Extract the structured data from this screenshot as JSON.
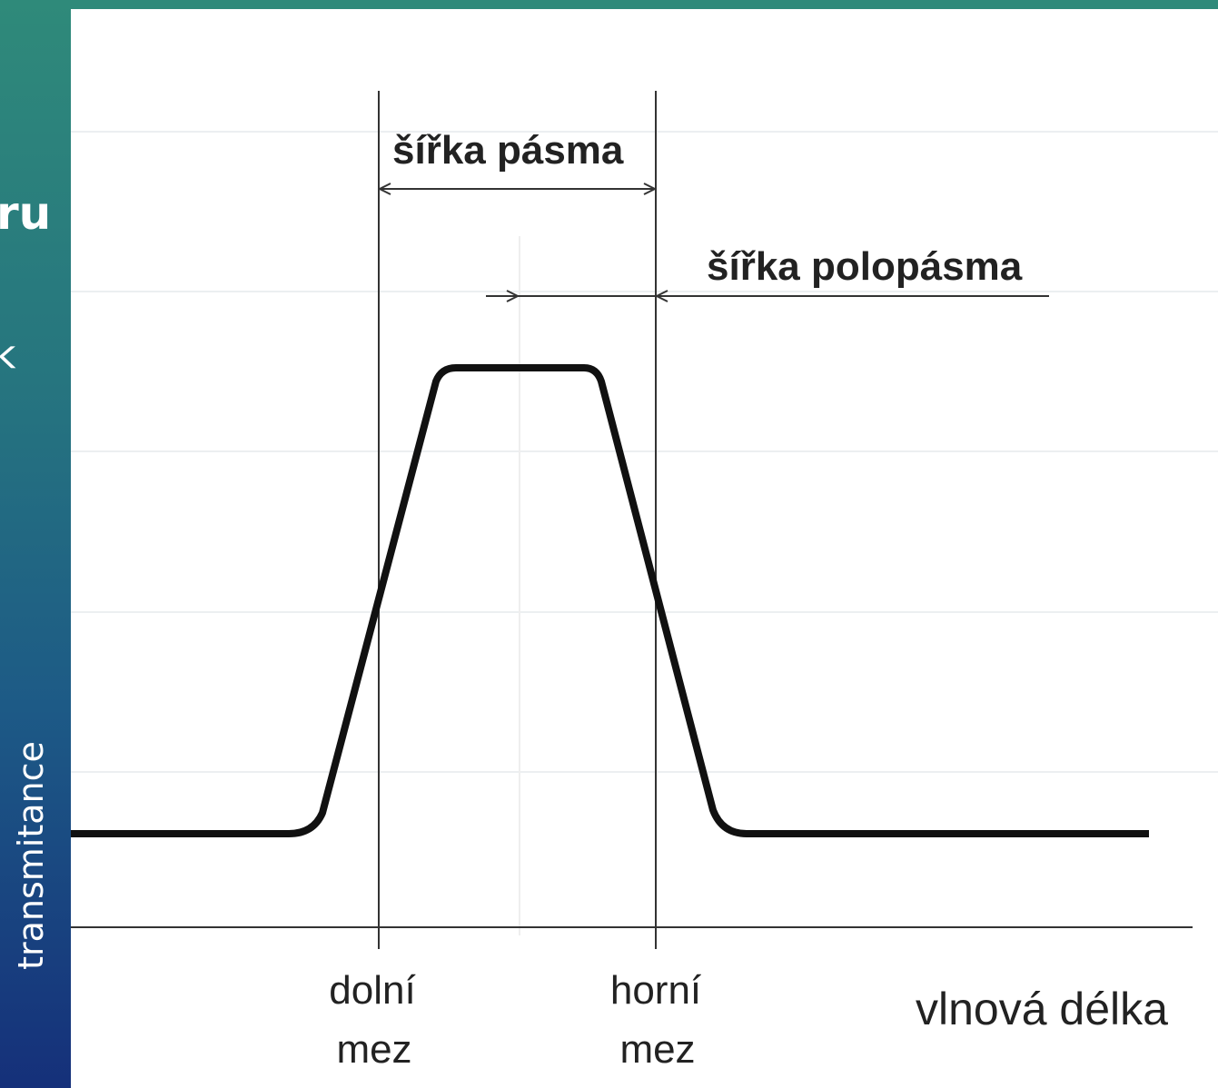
{
  "slide": {
    "fragments": [
      "ru",
      "k"
    ],
    "y_axis_label": "transmitance"
  },
  "diagram": {
    "bandwidth_label": "šířka pásma",
    "half_band_label": "šířka polopásma",
    "lower_limit": [
      "dolní",
      "mez"
    ],
    "upper_limit": [
      "horní",
      "mez"
    ],
    "x_axis_label": "vlnová délka"
  }
}
